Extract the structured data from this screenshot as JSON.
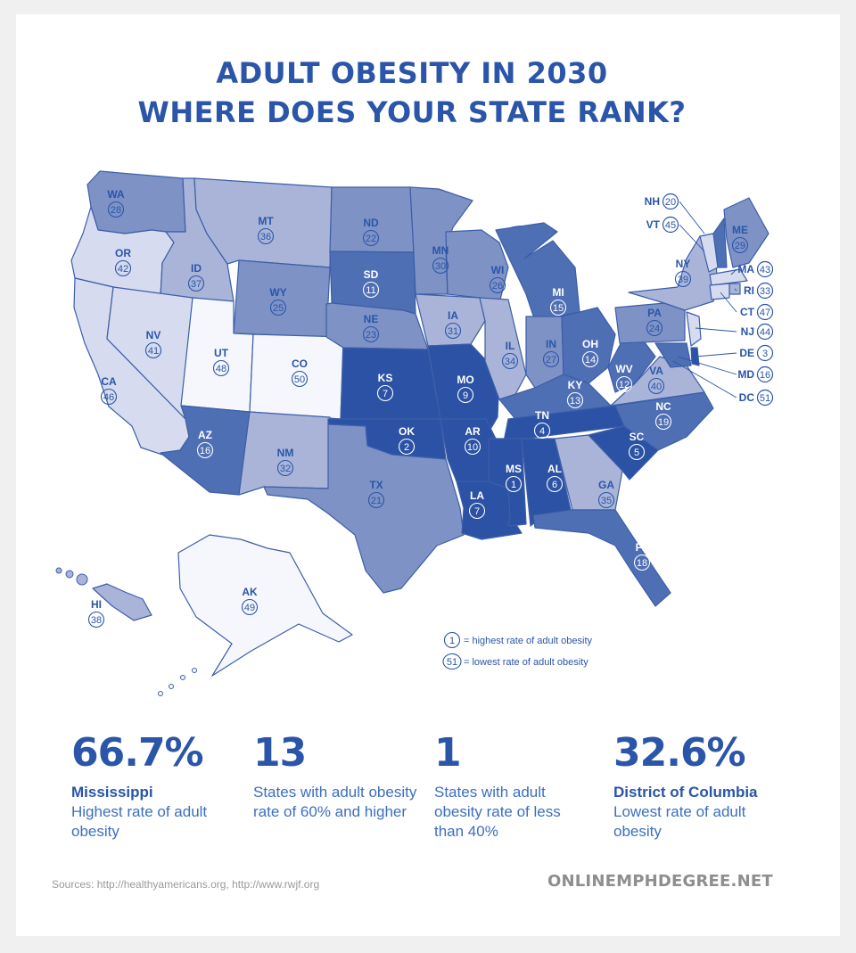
{
  "title": {
    "line1": "ADULT OBESITY IN 2030",
    "line2": "WHERE DOES YOUR STATE RANK?"
  },
  "colors": {
    "title": "#2a55a8",
    "ranks_1_10": "#2b52a4",
    "ranks_11_20": "#4f6fb5",
    "ranks_21_30": "#7e92c6",
    "ranks_31_40": "#a9b4d8",
    "ranks_41_47": "#d6dbef",
    "ranks_48_51": "#f6f7fc",
    "border": "#3c5ea8"
  },
  "states": [
    {
      "abbr": "WA",
      "rank": 28
    },
    {
      "abbr": "OR",
      "rank": 42
    },
    {
      "abbr": "CA",
      "rank": 46
    },
    {
      "abbr": "ID",
      "rank": 37
    },
    {
      "abbr": "NV",
      "rank": 41
    },
    {
      "abbr": "MT",
      "rank": 36
    },
    {
      "abbr": "WY",
      "rank": 25
    },
    {
      "abbr": "UT",
      "rank": 48
    },
    {
      "abbr": "CO",
      "rank": 50
    },
    {
      "abbr": "AZ",
      "rank": 16
    },
    {
      "abbr": "NM",
      "rank": 32
    },
    {
      "abbr": "ND",
      "rank": 22
    },
    {
      "abbr": "SD",
      "rank": 11
    },
    {
      "abbr": "NE",
      "rank": 23
    },
    {
      "abbr": "KS",
      "rank": 7
    },
    {
      "abbr": "OK",
      "rank": 2
    },
    {
      "abbr": "TX",
      "rank": 21
    },
    {
      "abbr": "MN",
      "rank": 30
    },
    {
      "abbr": "IA",
      "rank": 31
    },
    {
      "abbr": "MO",
      "rank": 9
    },
    {
      "abbr": "AR",
      "rank": 10
    },
    {
      "abbr": "LA",
      "rank": 7
    },
    {
      "abbr": "WI",
      "rank": 26
    },
    {
      "abbr": "IL",
      "rank": 34
    },
    {
      "abbr": "MI",
      "rank": 15
    },
    {
      "abbr": "IN",
      "rank": 27
    },
    {
      "abbr": "OH",
      "rank": 14
    },
    {
      "abbr": "KY",
      "rank": 13
    },
    {
      "abbr": "TN",
      "rank": 4
    },
    {
      "abbr": "MS",
      "rank": 1
    },
    {
      "abbr": "AL",
      "rank": 6
    },
    {
      "abbr": "GA",
      "rank": 35
    },
    {
      "abbr": "FL",
      "rank": 18
    },
    {
      "abbr": "SC",
      "rank": 5
    },
    {
      "abbr": "NC",
      "rank": 19
    },
    {
      "abbr": "VA",
      "rank": 40
    },
    {
      "abbr": "WV",
      "rank": 12
    },
    {
      "abbr": "PA",
      "rank": 24
    },
    {
      "abbr": "NY",
      "rank": 39
    },
    {
      "abbr": "ME",
      "rank": 29
    },
    {
      "abbr": "AK",
      "rank": 49
    },
    {
      "abbr": "HI",
      "rank": 38
    },
    {
      "abbr": "NH",
      "rank": 20
    },
    {
      "abbr": "VT",
      "rank": 45
    },
    {
      "abbr": "MA",
      "rank": 43
    },
    {
      "abbr": "RI",
      "rank": 33
    },
    {
      "abbr": "CT",
      "rank": 47
    },
    {
      "abbr": "NJ",
      "rank": 44
    },
    {
      "abbr": "DE",
      "rank": 3
    },
    {
      "abbr": "MD",
      "rank": 16
    },
    {
      "abbr": "DC",
      "rank": 51
    }
  ],
  "legend": {
    "items": [
      {
        "rank": "1",
        "text": "= highest rate of adult obesity"
      },
      {
        "rank": "51",
        "text": "= lowest rate of adult obesity"
      }
    ]
  },
  "stats": [
    {
      "value": "66.7%",
      "name": "Mississippi",
      "desc": "Highest rate of adult obesity"
    },
    {
      "value": "13",
      "name": "",
      "desc": "States with adult obesity rate of 60% and higher"
    },
    {
      "value": "1",
      "name": "",
      "desc": "States with adult obesity rate of less than 40%"
    },
    {
      "value": "32.6%",
      "name": "District of Columbia",
      "desc": "Lowest rate of adult obesity"
    }
  ],
  "footer": {
    "sources": "Sources: http://healthyamericans.org, http://www.rwjf.org",
    "brand": "ONLINEMPHDEGREE.NET"
  }
}
